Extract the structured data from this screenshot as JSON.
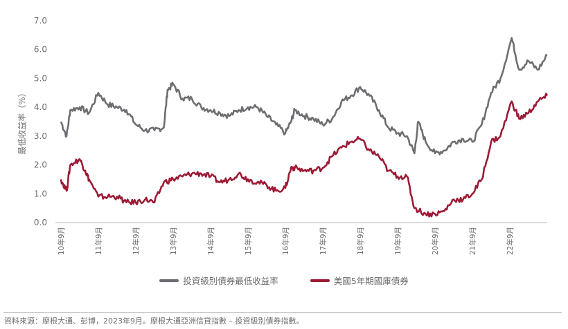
{
  "chart_data": {
    "type": "line",
    "title": "",
    "ylabel": "最低收益率（%）",
    "xlabel": "",
    "ylim": [
      0,
      7
    ],
    "xlim": [
      2010.75,
      2023.75
    ],
    "yticks": [
      "0.0",
      "1.0",
      "2.0",
      "3.0",
      "4.0",
      "5.0",
      "6.0",
      "7.0"
    ],
    "xticks": [
      {
        "x": 2010.75,
        "label": "10年9月"
      },
      {
        "x": 2011.75,
        "label": "11年9月"
      },
      {
        "x": 2012.75,
        "label": "12年9月"
      },
      {
        "x": 2013.75,
        "label": "13年9月"
      },
      {
        "x": 2014.75,
        "label": "14年9月"
      },
      {
        "x": 2015.75,
        "label": "15年9月"
      },
      {
        "x": 2016.75,
        "label": "16年9月"
      },
      {
        "x": 2017.75,
        "label": "17年9月"
      },
      {
        "x": 2018.75,
        "label": "18年9月"
      },
      {
        "x": 2019.75,
        "label": "19年9月"
      },
      {
        "x": 2020.75,
        "label": "20年9月"
      },
      {
        "x": 2021.75,
        "label": "21年9月"
      },
      {
        "x": 2022.75,
        "label": "22年9月"
      }
    ],
    "grid": false,
    "legend_position": "bottom-center",
    "series": [
      {
        "name": "投資級別債券最低收益率",
        "color": "#6d6e71",
        "x": [
          2010.75,
          2010.9,
          2011.0,
          2011.25,
          2011.5,
          2011.75,
          2012.0,
          2012.25,
          2012.5,
          2012.75,
          2013.0,
          2013.25,
          2013.5,
          2013.6,
          2013.75,
          2014.0,
          2014.25,
          2014.5,
          2014.75,
          2015.0,
          2015.25,
          2015.5,
          2015.75,
          2016.0,
          2016.25,
          2016.5,
          2016.75,
          2016.9,
          2017.0,
          2017.25,
          2017.5,
          2017.75,
          2018.0,
          2018.25,
          2018.5,
          2018.75,
          2019.0,
          2019.25,
          2019.5,
          2019.75,
          2020.0,
          2020.2,
          2020.3,
          2020.5,
          2020.75,
          2021.0,
          2021.25,
          2021.5,
          2021.75,
          2022.0,
          2022.25,
          2022.5,
          2022.8,
          2023.0,
          2023.25,
          2023.5,
          2023.75
        ],
        "values": [
          3.5,
          3.0,
          3.9,
          4.0,
          3.8,
          4.5,
          4.1,
          4.0,
          3.9,
          3.4,
          3.2,
          3.2,
          3.3,
          4.6,
          4.8,
          4.3,
          4.3,
          4.0,
          3.9,
          3.8,
          3.7,
          3.9,
          4.0,
          4.0,
          3.7,
          3.4,
          3.1,
          3.5,
          3.9,
          3.7,
          3.6,
          3.4,
          3.6,
          4.2,
          4.4,
          4.7,
          4.4,
          3.9,
          3.3,
          3.1,
          3.0,
          2.4,
          3.5,
          2.8,
          2.4,
          2.5,
          2.8,
          2.9,
          2.8,
          3.4,
          4.5,
          5.0,
          6.4,
          5.3,
          5.6,
          5.3,
          5.8
        ]
      },
      {
        "name": "美國5年期國庫債券",
        "color": "#9b1b35",
        "x": [
          2010.75,
          2010.9,
          2011.0,
          2011.25,
          2011.4,
          2011.5,
          2011.75,
          2012.0,
          2012.25,
          2012.5,
          2012.75,
          2013.0,
          2013.25,
          2013.5,
          2013.75,
          2014.0,
          2014.25,
          2014.5,
          2014.75,
          2015.0,
          2015.25,
          2015.5,
          2015.75,
          2016.0,
          2016.25,
          2016.5,
          2016.75,
          2016.9,
          2017.0,
          2017.25,
          2017.5,
          2017.75,
          2018.0,
          2018.25,
          2018.5,
          2018.75,
          2019.0,
          2019.25,
          2019.5,
          2019.75,
          2020.0,
          2020.2,
          2020.5,
          2020.75,
          2021.0,
          2021.25,
          2021.5,
          2021.75,
          2022.0,
          2022.25,
          2022.5,
          2022.8,
          2023.0,
          2023.25,
          2023.5,
          2023.75
        ],
        "values": [
          1.5,
          1.1,
          2.0,
          2.2,
          1.8,
          1.5,
          0.9,
          0.9,
          0.9,
          0.7,
          0.7,
          0.8,
          0.7,
          1.4,
          1.5,
          1.6,
          1.7,
          1.7,
          1.6,
          1.4,
          1.5,
          1.7,
          1.5,
          1.4,
          1.3,
          1.1,
          1.2,
          1.9,
          1.9,
          1.8,
          1.8,
          1.9,
          2.3,
          2.6,
          2.8,
          2.9,
          2.5,
          2.3,
          1.8,
          1.6,
          1.6,
          0.5,
          0.3,
          0.3,
          0.4,
          0.8,
          0.8,
          1.0,
          1.5,
          2.8,
          3.0,
          4.2,
          3.6,
          3.8,
          4.2,
          4.4
        ]
      }
    ]
  },
  "footer": {
    "source": "資料來源：摩根大通、彭博，2023年9月。摩根大通亞洲信貸指數 – 投資級別債券指數。"
  }
}
